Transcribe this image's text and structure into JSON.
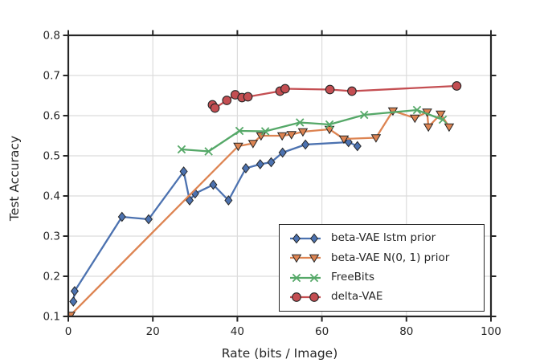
{
  "chart_data": {
    "type": "line",
    "title": "",
    "xlabel": "Rate (bits / Image)",
    "ylabel": "Test Accuracy",
    "xlim": [
      0,
      100
    ],
    "ylim": [
      0.1,
      0.8
    ],
    "xticks": [
      0,
      20,
      40,
      60,
      80,
      100
    ],
    "xtick_labels": [
      "0",
      "20",
      "40",
      "60",
      "80",
      "100"
    ],
    "yticks": [
      0.1,
      0.2,
      0.3,
      0.4,
      0.5,
      0.6,
      0.7,
      0.8
    ],
    "ytick_labels": [
      "0.1",
      "0.2",
      "0.3",
      "0.4",
      "0.5",
      "0.6",
      "0.7",
      "0.8"
    ],
    "grid": true,
    "legend_position": "lower right",
    "series": [
      {
        "name": "beta-VAE lstm prior",
        "color": "#4C72B0",
        "marker": "diamond",
        "points": [
          [
            1.2,
            0.137
          ],
          [
            1.5,
            0.163
          ],
          [
            12.7,
            0.348
          ],
          [
            19,
            0.342
          ],
          [
            27.3,
            0.461
          ],
          [
            28.7,
            0.389
          ],
          [
            30,
            0.406
          ],
          [
            34.3,
            0.428
          ],
          [
            37.9,
            0.389
          ],
          [
            42,
            0.469
          ],
          [
            45.4,
            0.479
          ],
          [
            48,
            0.484
          ],
          [
            50.7,
            0.508
          ],
          [
            56.1,
            0.528
          ],
          [
            66.3,
            0.534
          ],
          [
            68.4,
            0.524
          ]
        ]
      },
      {
        "name": "beta-VAE N(0, 1) prior",
        "color": "#DD8452",
        "marker": "triangle-down",
        "points": [
          [
            0.5,
            0.103
          ],
          [
            40.2,
            0.524
          ],
          [
            43.7,
            0.531
          ],
          [
            45.6,
            0.55
          ],
          [
            50.6,
            0.55
          ],
          [
            52.8,
            0.553
          ],
          [
            55.5,
            0.56
          ],
          [
            61.8,
            0.566
          ],
          [
            65.2,
            0.542
          ],
          [
            72.8,
            0.545
          ],
          [
            76.8,
            0.612
          ],
          [
            82,
            0.594
          ],
          [
            84.9,
            0.609
          ],
          [
            85.2,
            0.572
          ],
          [
            88.1,
            0.604
          ],
          [
            90.1,
            0.572
          ]
        ]
      },
      {
        "name": "FreeBits",
        "color": "#55A868",
        "marker": "x",
        "points": [
          [
            26.8,
            0.516
          ],
          [
            33.2,
            0.511
          ],
          [
            40.5,
            0.562
          ],
          [
            46.6,
            0.561
          ],
          [
            54.8,
            0.583
          ],
          [
            61.8,
            0.578
          ],
          [
            70,
            0.602
          ],
          [
            82.5,
            0.614
          ],
          [
            88.6,
            0.59
          ]
        ]
      },
      {
        "name": "delta-VAE",
        "color": "#C44E52",
        "marker": "circle",
        "points": [
          [
            34.1,
            0.627
          ],
          [
            34.7,
            0.619
          ],
          [
            37.5,
            0.638
          ],
          [
            39.5,
            0.652
          ],
          [
            41.1,
            0.645
          ],
          [
            42.5,
            0.647
          ],
          [
            50.1,
            0.661
          ],
          [
            51.3,
            0.667
          ],
          [
            61.9,
            0.665
          ],
          [
            67.1,
            0.661
          ],
          [
            91.9,
            0.674
          ]
        ]
      }
    ],
    "style": {
      "grid_color": "#dcdcdc",
      "spine_color": "#262626",
      "text_color": "#262626",
      "marker_edge": "#262626",
      "background": "#ffffff"
    }
  }
}
